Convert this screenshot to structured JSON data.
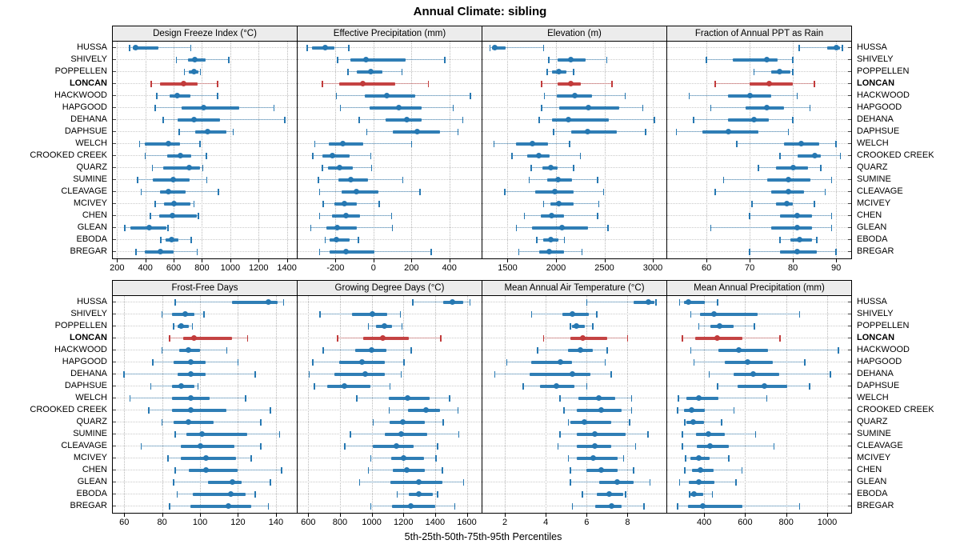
{
  "title": "Annual Climate: sibling",
  "caption": "5th-25th-50th-75th-95th Percentiles",
  "colors": {
    "series": "#2678b2",
    "highlight": "#c23b3b",
    "strip_bg": "#ececec",
    "grid": "#c0c0c0"
  },
  "highlight_station": "LONCAN",
  "stations": [
    "HUSSA",
    "SHIVELY",
    "POPPELLEN",
    "LONCAN",
    "HACKWOOD",
    "HAPGOOD",
    "DEHANA",
    "DAPHSUE",
    "WELCH",
    "CROOKED CREEK",
    "QUARZ",
    "SUMINE",
    "CLEAVAGE",
    "MCIVEY",
    "CHEN",
    "GLEAN",
    "EBODA",
    "BREGAR"
  ],
  "chart_data": {
    "type": "trellis-percentile-dotplot",
    "percentiles": [
      5,
      25,
      50,
      75,
      95
    ],
    "legend_position": "bottom-caption",
    "grid": "dotted",
    "panels": [
      {
        "row": 0,
        "title": "Design Freeze Index (°C)",
        "ticks": [
          200,
          400,
          600,
          800,
          1000,
          1200,
          1400
        ],
        "range": [
          170,
          1470
        ],
        "values": [
          [
            290,
            310,
            330,
            490,
            720
          ],
          [
            620,
            700,
            750,
            825,
            990
          ],
          [
            675,
            705,
            745,
            775,
            790
          ],
          [
            440,
            505,
            670,
            770,
            910
          ],
          [
            480,
            570,
            625,
            720,
            910
          ],
          [
            470,
            655,
            810,
            1065,
            1310
          ],
          [
            525,
            630,
            745,
            925,
            1385
          ],
          [
            640,
            750,
            840,
            975,
            1020
          ],
          [
            360,
            395,
            560,
            645,
            785
          ],
          [
            400,
            555,
            645,
            725,
            830
          ],
          [
            450,
            525,
            710,
            785,
            805
          ],
          [
            345,
            455,
            595,
            715,
            835
          ],
          [
            370,
            505,
            560,
            685,
            915
          ],
          [
            470,
            530,
            605,
            720,
            745
          ],
          [
            435,
            500,
            590,
            765,
            775
          ],
          [
            255,
            295,
            425,
            550,
            560
          ],
          [
            510,
            545,
            585,
            635,
            725
          ],
          [
            335,
            395,
            505,
            600,
            765
          ]
        ]
      },
      {
        "row": 0,
        "title": "Effective Precipitation (mm)",
        "ticks": [
          -200,
          0,
          200,
          400
        ],
        "range": [
          -400,
          570
        ],
        "values": [
          [
            -350,
            -325,
            -255,
            -205,
            -130
          ],
          [
            -190,
            -120,
            -40,
            170,
            375
          ],
          [
            -135,
            -90,
            -15,
            45,
            150
          ],
          [
            -270,
            -180,
            -55,
            115,
            290
          ],
          [
            -195,
            -45,
            70,
            220,
            510
          ],
          [
            -175,
            -20,
            135,
            255,
            420
          ],
          [
            -75,
            65,
            175,
            255,
            470
          ],
          [
            -35,
            100,
            230,
            350,
            445
          ],
          [
            -310,
            -235,
            -160,
            -55,
            200
          ],
          [
            -320,
            -270,
            -215,
            -125,
            -15
          ],
          [
            -270,
            -240,
            -180,
            -110,
            -10
          ],
          [
            -290,
            -185,
            -120,
            -30,
            155
          ],
          [
            -285,
            -170,
            -90,
            25,
            245
          ],
          [
            -265,
            -205,
            -155,
            -90,
            30
          ],
          [
            -285,
            -220,
            -145,
            -70,
            95
          ],
          [
            -330,
            -250,
            -190,
            -90,
            100
          ],
          [
            -255,
            -230,
            -195,
            -125,
            -80
          ],
          [
            -285,
            -230,
            -145,
            5,
            305
          ]
        ]
      },
      {
        "row": 0,
        "title": "Elevation (m)",
        "ticks": [
          1500,
          2000,
          2500,
          3000
        ],
        "range": [
          1240,
          3140
        ],
        "values": [
          [
            1320,
            1340,
            1370,
            1480,
            1870
          ],
          [
            1925,
            2015,
            2155,
            2305,
            2525
          ],
          [
            1910,
            1955,
            2030,
            2110,
            2180
          ],
          [
            1850,
            2020,
            2150,
            2260,
            2580
          ],
          [
            1880,
            2005,
            2195,
            2370,
            2715
          ],
          [
            1850,
            2030,
            2335,
            2655,
            2895
          ],
          [
            1825,
            1960,
            2125,
            2545,
            3015
          ],
          [
            1975,
            2155,
            2325,
            2630,
            2925
          ],
          [
            1360,
            1590,
            1760,
            1920,
            2140
          ],
          [
            1545,
            1700,
            1825,
            1935,
            2250
          ],
          [
            1745,
            1860,
            1945,
            2015,
            2180
          ],
          [
            1725,
            1905,
            2020,
            2165,
            2430
          ],
          [
            1470,
            1785,
            1990,
            2180,
            2490
          ],
          [
            1870,
            1945,
            2030,
            2180,
            2440
          ],
          [
            1675,
            1845,
            1955,
            2085,
            2430
          ],
          [
            1590,
            1755,
            2065,
            2330,
            2535
          ],
          [
            1800,
            1865,
            1950,
            2025,
            2085
          ],
          [
            1615,
            1825,
            1930,
            2085,
            2270
          ]
        ]
      },
      {
        "row": 0,
        "title": "Fraction of Annual PPT as Rain",
        "ticks": [
          60,
          70,
          80,
          90
        ],
        "range": [
          50.9,
          93.5
        ],
        "values": [
          [
            81.5,
            88,
            90,
            91,
            91.5
          ],
          [
            60,
            66,
            74,
            76.5,
            80
          ],
          [
            71,
            75,
            77,
            79.5,
            80
          ],
          [
            62,
            70,
            74.5,
            80,
            85
          ],
          [
            56,
            65,
            70,
            75,
            81
          ],
          [
            61,
            69,
            74,
            78,
            84
          ],
          [
            57,
            65,
            71,
            74.5,
            80
          ],
          [
            53,
            59,
            65,
            72,
            79
          ],
          [
            67,
            78,
            82,
            86,
            90
          ],
          [
            77,
            81,
            85,
            86.5,
            91
          ],
          [
            72,
            76,
            80,
            83.5,
            86.5
          ],
          [
            64,
            74,
            79,
            84,
            89
          ],
          [
            62,
            75,
            79,
            82.5,
            87.5
          ],
          [
            70.5,
            76,
            78.5,
            80,
            85
          ],
          [
            70,
            77,
            81,
            84.5,
            89
          ],
          [
            61,
            75,
            81,
            84.5,
            89
          ],
          [
            77,
            79.5,
            81.5,
            84.5,
            85.5
          ],
          [
            70,
            77,
            81,
            85.5,
            90
          ]
        ]
      },
      {
        "row": 1,
        "title": "Frost-Free Days",
        "ticks": [
          60,
          80,
          100,
          120,
          140
        ],
        "range": [
          54,
          151
        ],
        "values": [
          [
            87,
            117,
            136,
            141,
            144
          ],
          [
            80,
            85,
            92,
            97,
            102
          ],
          [
            86,
            88,
            90,
            94,
            96
          ],
          [
            84,
            91,
            97,
            117,
            125
          ],
          [
            80,
            89,
            94,
            100,
            114
          ],
          [
            75,
            86,
            95,
            103,
            120
          ],
          [
            60,
            88,
            95,
            103,
            129
          ],
          [
            74,
            85,
            90,
            97,
            99
          ],
          [
            63,
            85,
            95,
            105,
            124
          ],
          [
            73,
            85,
            95,
            114,
            137
          ],
          [
            80,
            86,
            94,
            107,
            132
          ],
          [
            87,
            93,
            101,
            125,
            142
          ],
          [
            69,
            90,
            100,
            118,
            132
          ],
          [
            83,
            90,
            103,
            119,
            127
          ],
          [
            87,
            94,
            103,
            120,
            143
          ],
          [
            86,
            104,
            117,
            122,
            137
          ],
          [
            88,
            96,
            116,
            124,
            129
          ],
          [
            84,
            95,
            115,
            127,
            136
          ]
        ]
      },
      {
        "row": 1,
        "title": "Growing Degree Days (°C)",
        "ticks": [
          600,
          800,
          1000,
          1200,
          1400,
          1600
        ],
        "range": [
          533,
          1693
        ],
        "values": [
          [
            1260,
            1450,
            1510,
            1575,
            1620
          ],
          [
            675,
            875,
            1005,
            1100,
            1180
          ],
          [
            980,
            1025,
            1080,
            1130,
            1190
          ],
          [
            785,
            945,
            1070,
            1235,
            1435
          ],
          [
            695,
            895,
            1000,
            1095,
            1250
          ],
          [
            630,
            795,
            940,
            1085,
            1205
          ],
          [
            605,
            765,
            960,
            1085,
            1185
          ],
          [
            640,
            720,
            830,
            990,
            1115
          ],
          [
            905,
            1110,
            1225,
            1365,
            1490
          ],
          [
            1110,
            1230,
            1340,
            1430,
            1545
          ],
          [
            1010,
            1115,
            1195,
            1335,
            1450
          ],
          [
            865,
            1085,
            1185,
            1350,
            1550
          ],
          [
            830,
            1005,
            1155,
            1265,
            1415
          ],
          [
            995,
            1125,
            1200,
            1330,
            1405
          ],
          [
            980,
            1135,
            1220,
            1335,
            1445
          ],
          [
            925,
            1120,
            1295,
            1445,
            1580
          ],
          [
            1160,
            1235,
            1295,
            1385,
            1415
          ],
          [
            995,
            1130,
            1245,
            1400,
            1525
          ]
        ]
      },
      {
        "row": 1,
        "title": "Mean Annual Air Temperature (°C)",
        "ticks": [
          2,
          4,
          6,
          8
        ],
        "range": [
          0.9,
          9.9
        ],
        "values": [
          [
            6.0,
            8.3,
            9.0,
            9.3,
            9.4
          ],
          [
            3.3,
            4.8,
            5.3,
            6.1,
            6.5
          ],
          [
            5.2,
            5.3,
            5.5,
            5.9,
            6.3
          ],
          [
            3.9,
            5.2,
            5.8,
            7.0,
            8.0
          ],
          [
            3.6,
            5.1,
            5.7,
            6.3,
            7.0
          ],
          [
            2.1,
            3.3,
            4.7,
            5.3,
            6.9
          ],
          [
            1.5,
            3.2,
            5.3,
            6.2,
            7.2
          ],
          [
            2.9,
            3.7,
            4.5,
            5.4,
            6.0
          ],
          [
            4.7,
            5.6,
            6.6,
            7.4,
            8.2
          ],
          [
            4.9,
            5.5,
            6.7,
            7.7,
            8.2
          ],
          [
            5.1,
            5.2,
            5.9,
            7.2,
            8.1
          ],
          [
            4.7,
            5.5,
            6.4,
            7.9,
            9.0
          ],
          [
            4.6,
            5.5,
            6.4,
            7.2,
            8.4
          ],
          [
            5.1,
            5.5,
            6.3,
            7.5,
            7.8
          ],
          [
            5.2,
            6.0,
            6.7,
            7.5,
            8.3
          ],
          [
            5.2,
            6.6,
            7.5,
            8.3,
            9.1
          ],
          [
            5.8,
            6.5,
            7.1,
            7.8,
            7.9
          ],
          [
            5.3,
            6.4,
            7.2,
            7.7,
            8.8
          ]
        ]
      },
      {
        "row": 1,
        "title": "Mean Annual Precipitation (mm)",
        "ticks": [
          400,
          600,
          800,
          1000
        ],
        "range": [
          220,
          1117
        ],
        "values": [
          [
            280,
            300,
            325,
            405,
            465
          ],
          [
            335,
            380,
            450,
            660,
            865
          ],
          [
            375,
            430,
            475,
            545,
            645
          ],
          [
            295,
            355,
            465,
            585,
            770
          ],
          [
            335,
            470,
            570,
            710,
            1055
          ],
          [
            350,
            500,
            610,
            735,
            890
          ],
          [
            425,
            545,
            640,
            765,
            1015
          ],
          [
            465,
            565,
            695,
            805,
            915
          ],
          [
            275,
            315,
            375,
            470,
            705
          ],
          [
            270,
            300,
            340,
            405,
            545
          ],
          [
            305,
            315,
            345,
            400,
            485
          ],
          [
            295,
            360,
            420,
            500,
            650
          ],
          [
            295,
            365,
            430,
            520,
            740
          ],
          [
            310,
            335,
            375,
            425,
            520
          ],
          [
            305,
            340,
            380,
            445,
            585
          ],
          [
            280,
            325,
            375,
            450,
            555
          ],
          [
            330,
            335,
            350,
            395,
            440
          ],
          [
            270,
            320,
            395,
            585,
            865
          ]
        ]
      }
    ]
  }
}
